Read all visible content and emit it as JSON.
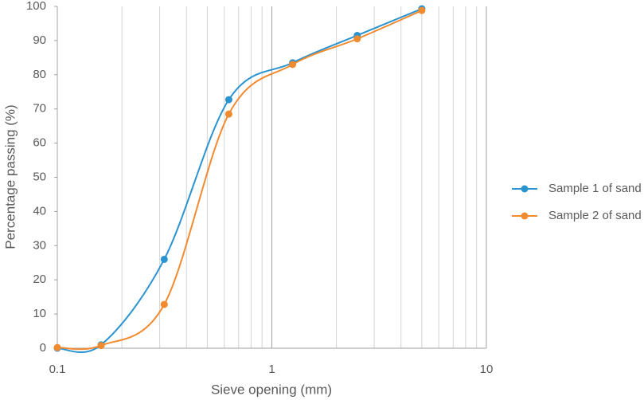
{
  "chart_data": {
    "type": "line",
    "x_label": "Sieve opening (mm)",
    "y_label": "Percentage passing (%)",
    "x": [
      0.1,
      0.16,
      0.315,
      0.63,
      1.25,
      2.5,
      5
    ],
    "series": [
      {
        "name": "Sample 1 of sand",
        "color": "#2a94d1",
        "values": [
          0,
          1,
          26,
          72.7,
          83.5,
          91.5,
          99.3
        ]
      },
      {
        "name": "Sample 2 of sand",
        "color": "#f28a30",
        "values": [
          0.2,
          0.8,
          12.8,
          68.5,
          83,
          90.5,
          98.8
        ]
      }
    ],
    "xlim": [
      0.1,
      10
    ],
    "xticks": [
      0.1,
      1,
      10
    ],
    "log_x": true,
    "minor_grid": true,
    "ylim": [
      0,
      100
    ],
    "yticks": [
      0,
      10,
      20,
      30,
      40,
      50,
      60,
      70,
      80,
      90,
      100
    ],
    "legend": "right"
  }
}
